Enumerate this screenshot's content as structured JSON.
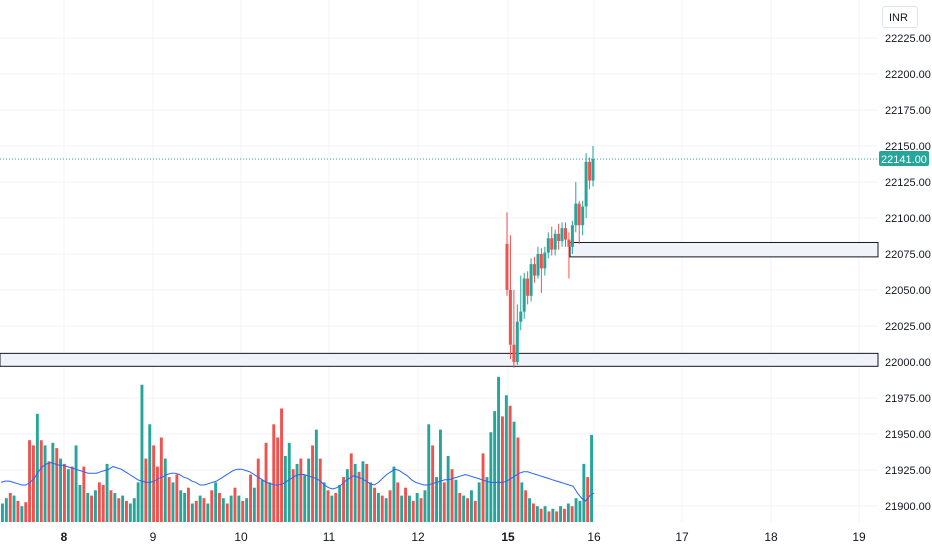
{
  "currency": "INR",
  "price_tag": "22141.00",
  "colors": {
    "up": "#26a69a",
    "down": "#ef5350",
    "ma": "#2962ff",
    "grid": "#f0f3fa",
    "price_line": "#26a69a"
  },
  "chart_data": {
    "type": "candlestick",
    "x_ticks": [
      {
        "label": "8",
        "bold": true
      },
      {
        "label": "9",
        "bold": false
      },
      {
        "label": "10",
        "bold": false
      },
      {
        "label": "11",
        "bold": false
      },
      {
        "label": "12",
        "bold": false
      },
      {
        "label": "15",
        "bold": true
      },
      {
        "label": "16",
        "bold": false
      },
      {
        "label": "17",
        "bold": false
      },
      {
        "label": "18",
        "bold": false
      },
      {
        "label": "19",
        "bold": false
      }
    ],
    "y_ticks": [
      "22225.00",
      "22200.00",
      "22175.00",
      "22150.00",
      "22125.00",
      "22100.00",
      "22075.00",
      "22050.00",
      "22025.00",
      "22000.00",
      "21975.00",
      "21950.00",
      "21925.00",
      "21900.00"
    ],
    "ylim": [
      21895,
      22240
    ],
    "last_price": 22141,
    "zones": [
      {
        "low": 22073,
        "high": 22083
      },
      {
        "low": 21997,
        "high": 22006
      }
    ],
    "candles": [
      {
        "o": 22082,
        "h": 22104,
        "c": 22050,
        "l": 22046
      },
      {
        "o": 22050,
        "h": 22088,
        "c": 22012,
        "l": 22002
      },
      {
        "o": 22012,
        "h": 22050,
        "c": 22000,
        "l": 21996
      },
      {
        "o": 22000,
        "h": 22040,
        "c": 22028,
        "l": 21998
      },
      {
        "o": 22028,
        "h": 22060,
        "c": 22035,
        "l": 22022
      },
      {
        "o": 22035,
        "h": 22062,
        "c": 22058,
        "l": 22030
      },
      {
        "o": 22058,
        "h": 22063,
        "c": 22046,
        "l": 22040
      },
      {
        "o": 22046,
        "h": 22072,
        "c": 22068,
        "l": 22042
      },
      {
        "o": 22068,
        "h": 22073,
        "c": 22060,
        "l": 22055
      },
      {
        "o": 22060,
        "h": 22080,
        "c": 22075,
        "l": 22058
      },
      {
        "o": 22075,
        "h": 22079,
        "c": 22065,
        "l": 22048
      },
      {
        "o": 22065,
        "h": 22080,
        "c": 22076,
        "l": 22060
      },
      {
        "o": 22076,
        "h": 22090,
        "c": 22086,
        "l": 22072
      },
      {
        "o": 22086,
        "h": 22094,
        "c": 22078,
        "l": 22074
      },
      {
        "o": 22078,
        "h": 22092,
        "c": 22089,
        "l": 22074
      },
      {
        "o": 22089,
        "h": 22096,
        "c": 22084,
        "l": 22078
      },
      {
        "o": 22084,
        "h": 22097,
        "c": 22093,
        "l": 22080
      },
      {
        "o": 22093,
        "h": 22097,
        "c": 22085,
        "l": 22080
      },
      {
        "o": 22085,
        "h": 22090,
        "c": 22080,
        "l": 22058
      },
      {
        "o": 22080,
        "h": 22098,
        "c": 22095,
        "l": 22075
      },
      {
        "o": 22095,
        "h": 22125,
        "c": 22110,
        "l": 22090
      },
      {
        "o": 22110,
        "h": 22112,
        "c": 22095,
        "l": 22082
      },
      {
        "o": 22095,
        "h": 22112,
        "c": 22108,
        "l": 22088
      },
      {
        "o": 22108,
        "h": 22145,
        "c": 22139,
        "l": 22100
      },
      {
        "o": 22139,
        "h": 22142,
        "c": 22126,
        "l": 22120
      },
      {
        "o": 22126,
        "h": 22150,
        "c": 22141,
        "l": 22122
      }
    ],
    "volume": {
      "max": 100,
      "bars": [
        {
          "v": 14,
          "up": true
        },
        {
          "v": 18,
          "up": true
        },
        {
          "v": 22,
          "up": false
        },
        {
          "v": 20,
          "up": true
        },
        {
          "v": 16,
          "up": false
        },
        {
          "v": 12,
          "up": true
        },
        {
          "v": 15,
          "up": false
        },
        {
          "v": 62,
          "up": false
        },
        {
          "v": 58,
          "up": false
        },
        {
          "v": 82,
          "up": true
        },
        {
          "v": 62,
          "up": false
        },
        {
          "v": 58,
          "up": true
        },
        {
          "v": 46,
          "up": false
        },
        {
          "v": 60,
          "up": true
        },
        {
          "v": 56,
          "up": false
        },
        {
          "v": 48,
          "up": true
        },
        {
          "v": 44,
          "up": false
        },
        {
          "v": 40,
          "up": true
        },
        {
          "v": 42,
          "up": false
        },
        {
          "v": 58,
          "up": true
        },
        {
          "v": 28,
          "up": true
        },
        {
          "v": 42,
          "up": false
        },
        {
          "v": 22,
          "up": true
        },
        {
          "v": 20,
          "up": false
        },
        {
          "v": 24,
          "up": true
        },
        {
          "v": 30,
          "up": false
        },
        {
          "v": 28,
          "up": false
        },
        {
          "v": 44,
          "up": true
        },
        {
          "v": 24,
          "up": false
        },
        {
          "v": 22,
          "up": true
        },
        {
          "v": 18,
          "up": false
        },
        {
          "v": 20,
          "up": true
        },
        {
          "v": 16,
          "up": false
        },
        {
          "v": 14,
          "up": true
        },
        {
          "v": 18,
          "up": true
        },
        {
          "v": 30,
          "up": true
        },
        {
          "v": 104,
          "up": true
        },
        {
          "v": 48,
          "up": false
        },
        {
          "v": 74,
          "up": true
        },
        {
          "v": 58,
          "up": false
        },
        {
          "v": 42,
          "up": false
        },
        {
          "v": 64,
          "up": false
        },
        {
          "v": 48,
          "up": true
        },
        {
          "v": 34,
          "up": false
        },
        {
          "v": 30,
          "up": true
        },
        {
          "v": 36,
          "up": false
        },
        {
          "v": 24,
          "up": true
        },
        {
          "v": 22,
          "up": true
        },
        {
          "v": 26,
          "up": false
        },
        {
          "v": 14,
          "up": true
        },
        {
          "v": 16,
          "up": false
        },
        {
          "v": 20,
          "up": true
        },
        {
          "v": 18,
          "up": false
        },
        {
          "v": 14,
          "up": true
        },
        {
          "v": 24,
          "up": false
        },
        {
          "v": 30,
          "up": true
        },
        {
          "v": 22,
          "up": false
        },
        {
          "v": 18,
          "up": true
        },
        {
          "v": 14,
          "up": false
        },
        {
          "v": 20,
          "up": true
        },
        {
          "v": 26,
          "up": false
        },
        {
          "v": 20,
          "up": true
        },
        {
          "v": 16,
          "up": false
        },
        {
          "v": 18,
          "up": true
        },
        {
          "v": 36,
          "up": false
        },
        {
          "v": 26,
          "up": true
        },
        {
          "v": 48,
          "up": false
        },
        {
          "v": 32,
          "up": true
        },
        {
          "v": 60,
          "up": false
        },
        {
          "v": 30,
          "up": true
        },
        {
          "v": 74,
          "up": false
        },
        {
          "v": 64,
          "up": false
        },
        {
          "v": 86,
          "up": false
        },
        {
          "v": 50,
          "up": true
        },
        {
          "v": 60,
          "up": true
        },
        {
          "v": 40,
          "up": false
        },
        {
          "v": 44,
          "up": true
        },
        {
          "v": 48,
          "up": false
        },
        {
          "v": 36,
          "up": true
        },
        {
          "v": 48,
          "up": true
        },
        {
          "v": 58,
          "up": false
        },
        {
          "v": 70,
          "up": true
        },
        {
          "v": 48,
          "up": false
        },
        {
          "v": 30,
          "up": true
        },
        {
          "v": 24,
          "up": false
        },
        {
          "v": 20,
          "up": true
        },
        {
          "v": 22,
          "up": false
        },
        {
          "v": 28,
          "up": true
        },
        {
          "v": 34,
          "up": false
        },
        {
          "v": 40,
          "up": true
        },
        {
          "v": 52,
          "up": false
        },
        {
          "v": 44,
          "up": true
        },
        {
          "v": 38,
          "up": false
        },
        {
          "v": 46,
          "up": true
        },
        {
          "v": 44,
          "up": false
        },
        {
          "v": 30,
          "up": true
        },
        {
          "v": 26,
          "up": false
        },
        {
          "v": 22,
          "up": true
        },
        {
          "v": 20,
          "up": false
        },
        {
          "v": 18,
          "up": true
        },
        {
          "v": 24,
          "up": false
        },
        {
          "v": 42,
          "up": true
        },
        {
          "v": 30,
          "up": false
        },
        {
          "v": 20,
          "up": true
        },
        {
          "v": 26,
          "up": false
        },
        {
          "v": 20,
          "up": true
        },
        {
          "v": 16,
          "up": false
        },
        {
          "v": 22,
          "up": true
        },
        {
          "v": 18,
          "up": false
        },
        {
          "v": 24,
          "up": true
        },
        {
          "v": 74,
          "up": true
        },
        {
          "v": 58,
          "up": false
        },
        {
          "v": 34,
          "up": true
        },
        {
          "v": 70,
          "up": true
        },
        {
          "v": 30,
          "up": false
        },
        {
          "v": 50,
          "up": true
        },
        {
          "v": 40,
          "up": false
        },
        {
          "v": 32,
          "up": true
        },
        {
          "v": 22,
          "up": false
        },
        {
          "v": 20,
          "up": true
        },
        {
          "v": 18,
          "up": false
        },
        {
          "v": 24,
          "up": true
        },
        {
          "v": 16,
          "up": false
        },
        {
          "v": 30,
          "up": true
        },
        {
          "v": 52,
          "up": false
        },
        {
          "v": 34,
          "up": true
        },
        {
          "v": 68,
          "up": true
        },
        {
          "v": 84,
          "up": true
        },
        {
          "v": 110,
          "up": true
        },
        {
          "v": 80,
          "up": false
        },
        {
          "v": 96,
          "up": true
        },
        {
          "v": 88,
          "up": false
        },
        {
          "v": 76,
          "up": true
        },
        {
          "v": 64,
          "up": false
        },
        {
          "v": 30,
          "up": true
        },
        {
          "v": 24,
          "up": false
        },
        {
          "v": 18,
          "up": true
        },
        {
          "v": 14,
          "up": false
        },
        {
          "v": 12,
          "up": true
        },
        {
          "v": 10,
          "up": false
        },
        {
          "v": 12,
          "up": true
        },
        {
          "v": 8,
          "up": false
        },
        {
          "v": 10,
          "up": true
        },
        {
          "v": 8,
          "up": false
        },
        {
          "v": 12,
          "up": true
        },
        {
          "v": 10,
          "up": false
        },
        {
          "v": 14,
          "up": true
        },
        {
          "v": 12,
          "up": false
        },
        {
          "v": 18,
          "up": true
        },
        {
          "v": 16,
          "up": true
        },
        {
          "v": 44,
          "up": true
        },
        {
          "v": 34,
          "up": false
        },
        {
          "v": 66,
          "up": true
        }
      ],
      "ma": [
        30,
        31,
        31,
        30,
        29,
        28,
        28,
        30,
        33,
        38,
        42,
        44,
        45,
        44,
        43,
        43,
        42,
        41,
        40,
        39,
        38,
        37,
        37,
        37,
        38,
        39,
        40,
        42,
        41,
        40,
        38,
        36,
        34,
        32,
        31,
        30,
        30,
        31,
        33,
        34,
        36,
        37,
        37,
        36,
        34,
        33,
        31,
        30,
        28,
        28,
        29,
        30,
        31,
        33,
        35,
        37,
        39,
        40,
        40,
        39,
        38,
        36,
        34,
        32,
        30,
        29,
        28,
        28,
        29,
        31,
        33,
        35,
        36,
        36,
        35,
        34,
        33,
        31,
        28,
        26,
        25,
        26,
        28,
        31,
        33,
        35,
        34,
        33,
        31,
        29,
        28,
        30,
        33,
        36,
        38,
        40,
        39,
        37,
        35,
        32,
        30,
        29,
        28,
        28,
        29,
        30,
        31,
        32,
        32,
        33,
        34,
        35,
        36,
        35,
        34,
        33,
        32,
        31,
        30,
        30,
        30,
        30,
        31,
        33,
        35,
        37,
        38,
        38,
        37,
        36,
        35,
        34,
        33,
        32,
        31,
        30,
        29,
        28,
        27,
        22,
        18,
        16,
        20,
        22
      ]
    }
  }
}
